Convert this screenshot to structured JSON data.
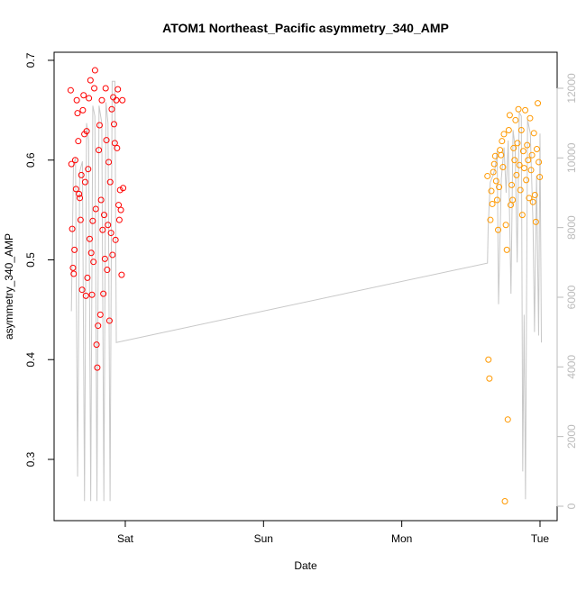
{
  "chart_data": {
    "type": "scatter",
    "title": "ATOM1 Northeast_Pacific asymmetry_340_AMP",
    "x_label": "Date",
    "y_label": "asymmetry_340_AMP",
    "xlim": [
      0.485,
      4.124
    ],
    "xticks": [
      {
        "value": 1,
        "label": "Sat"
      },
      {
        "value": 2,
        "label": "Sun"
      },
      {
        "value": 3,
        "label": "Mon"
      },
      {
        "value": 4,
        "label": "Tue"
      }
    ],
    "ylim": [
      0.2386,
      0.7081
    ],
    "yticks": [
      0.3,
      0.4,
      0.5,
      0.6,
      0.7
    ],
    "y2lim": [
      -414,
      13034
    ],
    "y2ticks": [
      0,
      2000,
      4000,
      6000,
      8000,
      10000,
      12000
    ],
    "y2_color": "#bbbbbb",
    "series": [
      {
        "color": "#ff0000",
        "x": [
          0.605,
          0.6105,
          0.616,
          0.6215,
          0.627,
          0.6325,
          0.638,
          0.6435,
          0.649,
          0.6545,
          0.66,
          0.6655,
          0.671,
          0.6765,
          0.682,
          0.6875,
          0.693,
          0.6985,
          0.704,
          0.7095,
          0.715,
          0.7205,
          0.726,
          0.7315,
          0.737,
          0.7425,
          0.748,
          0.7535,
          0.759,
          0.7645,
          0.77,
          0.7755,
          0.781,
          0.7865,
          0.792,
          0.7975,
          0.803,
          0.8085,
          0.814,
          0.8195,
          0.825,
          0.8305,
          0.836,
          0.8415,
          0.847,
          0.8525,
          0.858,
          0.8635,
          0.869,
          0.8745,
          0.88,
          0.8855,
          0.891,
          0.8965,
          0.902,
          0.9075,
          0.913,
          0.9185,
          0.924,
          0.9295,
          0.935,
          0.9405,
          0.946,
          0.9515,
          0.957,
          0.9625,
          0.968,
          0.9735,
          0.979,
          0.9845
        ],
        "values": [
          0.67,
          0.596,
          0.531,
          0.492,
          0.486,
          0.51,
          0.6,
          0.571,
          0.66,
          0.647,
          0.619,
          0.566,
          0.562,
          0.54,
          0.585,
          0.47,
          0.65,
          0.665,
          0.626,
          0.578,
          0.464,
          0.629,
          0.482,
          0.591,
          0.662,
          0.521,
          0.68,
          0.507,
          0.465,
          0.539,
          0.498,
          0.672,
          0.69,
          0.551,
          0.415,
          0.392,
          0.434,
          0.61,
          0.635,
          0.445,
          0.56,
          0.66,
          0.53,
          0.466,
          0.545,
          0.501,
          0.672,
          0.62,
          0.49,
          0.535,
          0.598,
          0.439,
          0.578,
          0.527,
          0.651,
          0.505,
          0.663,
          0.636,
          0.617,
          0.52,
          0.66,
          0.612,
          0.671,
          0.555,
          0.54,
          0.57,
          0.55,
          0.485,
          0.66,
          0.572
        ]
      },
      {
        "color": "#ff9900",
        "x": [
          3.62,
          3.627,
          3.634,
          3.641,
          3.648,
          3.655,
          3.662,
          3.669,
          3.676,
          3.683,
          3.69,
          3.697,
          3.704,
          3.711,
          3.718,
          3.725,
          3.732,
          3.739,
          3.746,
          3.753,
          3.76,
          3.767,
          3.774,
          3.781,
          3.788,
          3.795,
          3.802,
          3.809,
          3.816,
          3.823,
          3.83,
          3.837,
          3.844,
          3.851,
          3.858,
          3.865,
          3.872,
          3.879,
          3.886,
          3.893,
          3.9,
          3.907,
          3.914,
          3.921,
          3.928,
          3.935,
          3.942,
          3.949,
          3.956,
          3.963,
          3.97,
          3.977,
          3.984,
          3.991,
          3.998
        ],
        "values": [
          0.584,
          0.4,
          0.381,
          0.54,
          0.569,
          0.556,
          0.588,
          0.596,
          0.604,
          0.579,
          0.56,
          0.53,
          0.573,
          0.61,
          0.605,
          0.619,
          0.593,
          0.626,
          0.258,
          0.535,
          0.51,
          0.34,
          0.63,
          0.645,
          0.555,
          0.575,
          0.56,
          0.612,
          0.6,
          0.64,
          0.585,
          0.617,
          0.651,
          0.595,
          0.57,
          0.63,
          0.545,
          0.609,
          0.592,
          0.65,
          0.58,
          0.615,
          0.6,
          0.562,
          0.642,
          0.59,
          0.605,
          0.558,
          0.627,
          0.565,
          0.538,
          0.611,
          0.657,
          0.598,
          0.583
        ]
      },
      {
        "type": "line",
        "axis": "y2",
        "color": "#c8c8c8",
        "x": [
          0.61,
          0.625,
          0.64,
          0.655,
          0.67,
          0.69,
          0.705,
          0.72,
          0.735,
          0.75,
          0.765,
          0.78,
          0.795,
          0.81,
          0.83,
          0.845,
          0.86,
          0.875,
          0.89,
          0.905,
          0.925,
          0.935,
          3.62,
          3.625,
          3.64,
          3.66,
          3.675,
          3.69,
          3.7,
          3.72,
          3.74,
          3.755,
          3.77,
          3.79,
          3.805,
          3.82,
          3.835,
          3.85,
          3.865,
          3.875,
          3.885,
          3.895,
          3.91,
          3.93,
          3.95,
          3.96,
          3.975,
          3.99,
          4.0,
          4.01
        ],
        "values": [
          5600,
          9800,
          10000,
          850,
          9600,
          9900,
          150,
          11000,
          10500,
          150,
          11500,
          11200,
          150,
          11500,
          11000,
          150,
          11600,
          11000,
          150,
          12200,
          12200,
          4700,
          6980,
          8000,
          9300,
          9500,
          9700,
          10200,
          5800,
          9400,
          10300,
          9000,
          10500,
          6100,
          10800,
          10300,
          7000,
          11300,
          11200,
          1000,
          5500,
          200,
          11100,
          10700,
          8000,
          5000,
          9500,
          4900,
          10700,
          4700
        ]
      }
    ]
  }
}
